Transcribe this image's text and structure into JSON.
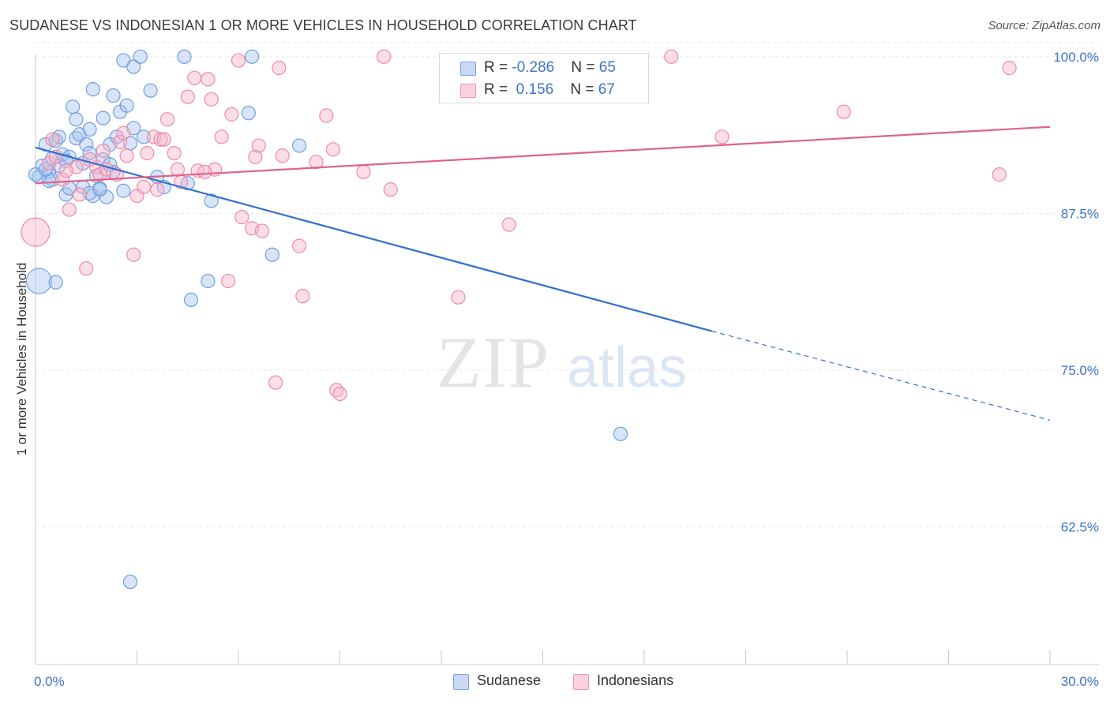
{
  "title": "SUDANESE VS INDONESIAN 1 OR MORE VEHICLES IN HOUSEHOLD CORRELATION CHART",
  "source": "Source: ZipAtlas.com",
  "watermark": {
    "zip": "ZIP",
    "atlas": "atlas"
  },
  "legend": {
    "rows": [
      {
        "r_label": "R = ",
        "r_value": "-0.286",
        "n_label": "N = ",
        "n_value": "65",
        "color": "#a9c4ee"
      },
      {
        "r_label": "R = ",
        "r_value": " 0.156",
        "n_label": "N = ",
        "n_value": "67",
        "color": "#f6b6c9"
      }
    ]
  },
  "bottom_legend": [
    {
      "label": "Sudanese",
      "color": "#a9c4ee"
    },
    {
      "label": "Indonesians",
      "color": "#f6b6c9"
    }
  ],
  "chart_data": {
    "type": "scatter",
    "title": "SUDANESE VS INDONESIAN 1 OR MORE VEHICLES IN HOUSEHOLD CORRELATION CHART",
    "xlabel": "",
    "ylabel": "1 or more Vehicles in Household",
    "xlim": [
      0,
      30
    ],
    "ylim": [
      51.5,
      101.5
    ],
    "x_tick_labels": [
      "0.0%",
      "30.0%"
    ],
    "y_ticks": [
      62.5,
      75.0,
      87.5,
      100.0
    ],
    "y_tick_labels": [
      "62.5%",
      "75.0%",
      "87.5%",
      "100.0%"
    ],
    "grid": true,
    "series": [
      {
        "name": "Sudanese",
        "color": "#6f9fe0",
        "fill": "#a9c4ee",
        "trend_color": "#3370cc",
        "trend": {
          "x0": 0,
          "y0": 92.75,
          "x1": 20.0,
          "y1": 78.1,
          "dash_to_x": 30.0,
          "dash_to_y": 71.0
        },
        "points": [
          [
            0.1,
            90.4
          ],
          [
            0.2,
            91.3
          ],
          [
            0.3,
            93.0
          ],
          [
            0.4,
            90.8
          ],
          [
            0.5,
            90.2
          ],
          [
            0.5,
            91.9
          ],
          [
            0.6,
            93.3
          ],
          [
            0.7,
            91.3
          ],
          [
            0.7,
            93.6
          ],
          [
            0.8,
            92.2
          ],
          [
            0.9,
            89.0
          ],
          [
            1.0,
            92.0
          ],
          [
            1.0,
            89.5
          ],
          [
            1.1,
            96.0
          ],
          [
            1.2,
            95.0
          ],
          [
            1.2,
            93.5
          ],
          [
            1.3,
            93.8
          ],
          [
            1.4,
            91.5
          ],
          [
            1.4,
            89.6
          ],
          [
            1.5,
            93.0
          ],
          [
            1.6,
            94.2
          ],
          [
            1.6,
            92.3
          ],
          [
            1.7,
            88.9
          ],
          [
            1.7,
            97.4
          ],
          [
            1.8,
            90.5
          ],
          [
            1.9,
            89.5
          ],
          [
            2.0,
            95.1
          ],
          [
            2.0,
            91.8
          ],
          [
            2.1,
            88.8
          ],
          [
            2.2,
            91.4
          ],
          [
            2.2,
            93.0
          ],
          [
            2.3,
            96.9
          ],
          [
            2.3,
            90.8
          ],
          [
            2.4,
            93.6
          ],
          [
            2.5,
            95.6
          ],
          [
            2.6,
            89.3
          ],
          [
            2.6,
            99.7
          ],
          [
            2.7,
            96.1
          ],
          [
            2.8,
            93.1
          ],
          [
            2.9,
            94.3
          ],
          [
            2.9,
            99.2
          ],
          [
            3.1,
            100.0
          ],
          [
            3.2,
            93.6
          ],
          [
            3.4,
            97.3
          ],
          [
            3.6,
            90.4
          ],
          [
            3.8,
            89.6
          ],
          [
            4.4,
            100.0
          ],
          [
            4.5,
            89.9
          ],
          [
            5.2,
            88.5
          ],
          [
            6.3,
            95.5
          ],
          [
            6.4,
            100.0
          ],
          [
            7.0,
            84.2
          ],
          [
            7.8,
            92.9
          ],
          [
            0.1,
            82.1
          ],
          [
            0.6,
            82.0
          ],
          [
            5.1,
            82.1
          ],
          [
            4.6,
            80.6
          ],
          [
            2.8,
            58.1
          ],
          [
            17.3,
            69.9
          ],
          [
            0.0,
            90.6
          ],
          [
            0.4,
            90.1
          ],
          [
            1.6,
            89.1
          ],
          [
            1.9,
            89.4
          ],
          [
            0.3,
            91.0
          ],
          [
            0.9,
            91.7
          ]
        ],
        "sizes": {
          "0.1,82.1": 16
        }
      },
      {
        "name": "Indonesians",
        "color": "#ee8aa8",
        "fill": "#f6b6c9",
        "trend_color": "#e0628c",
        "trend": {
          "x0": 0,
          "y0": 89.9,
          "x1": 30.0,
          "y1": 94.4
        },
        "points": [
          [
            0.0,
            86.0
          ],
          [
            0.4,
            91.5
          ],
          [
            0.5,
            93.4
          ],
          [
            0.6,
            92.0
          ],
          [
            0.8,
            90.2
          ],
          [
            1.0,
            87.8
          ],
          [
            1.2,
            91.2
          ],
          [
            1.3,
            89.0
          ],
          [
            1.5,
            83.1
          ],
          [
            1.8,
            91.2
          ],
          [
            1.9,
            90.6
          ],
          [
            2.1,
            91.0
          ],
          [
            2.4,
            90.6
          ],
          [
            2.5,
            93.2
          ],
          [
            2.6,
            93.9
          ],
          [
            2.7,
            92.1
          ],
          [
            2.9,
            84.2
          ],
          [
            3.0,
            88.9
          ],
          [
            3.2,
            89.6
          ],
          [
            3.3,
            92.3
          ],
          [
            3.5,
            93.6
          ],
          [
            3.6,
            89.4
          ],
          [
            3.7,
            93.4
          ],
          [
            3.9,
            95.0
          ],
          [
            4.1,
            92.3
          ],
          [
            4.2,
            91.0
          ],
          [
            4.3,
            90.0
          ],
          [
            4.5,
            96.8
          ],
          [
            4.7,
            98.3
          ],
          [
            4.8,
            90.9
          ],
          [
            5.1,
            98.2
          ],
          [
            5.2,
            96.6
          ],
          [
            5.3,
            91.0
          ],
          [
            5.5,
            93.6
          ],
          [
            5.7,
            82.1
          ],
          [
            5.8,
            95.4
          ],
          [
            6.0,
            99.7
          ],
          [
            6.1,
            87.2
          ],
          [
            6.4,
            86.3
          ],
          [
            6.5,
            92.0
          ],
          [
            6.7,
            86.1
          ],
          [
            7.1,
            74.0
          ],
          [
            7.2,
            99.1
          ],
          [
            7.3,
            92.1
          ],
          [
            7.8,
            84.9
          ],
          [
            7.9,
            80.9
          ],
          [
            8.3,
            91.6
          ],
          [
            8.6,
            95.3
          ],
          [
            8.8,
            92.6
          ],
          [
            8.9,
            73.4
          ],
          [
            9.0,
            73.1
          ],
          [
            9.7,
            90.8
          ],
          [
            10.3,
            100.0
          ],
          [
            10.5,
            89.4
          ],
          [
            12.5,
            80.8
          ],
          [
            14.0,
            86.6
          ],
          [
            18.8,
            100.0
          ],
          [
            20.3,
            93.6
          ],
          [
            23.9,
            95.6
          ],
          [
            28.5,
            90.6
          ],
          [
            28.8,
            99.1
          ],
          [
            1.6,
            91.8
          ],
          [
            2.0,
            92.5
          ],
          [
            0.9,
            90.9
          ],
          [
            3.8,
            93.4
          ],
          [
            5.0,
            90.8
          ],
          [
            6.6,
            92.9
          ]
        ],
        "sizes": {
          "0.0,86.0": 18
        }
      }
    ]
  }
}
